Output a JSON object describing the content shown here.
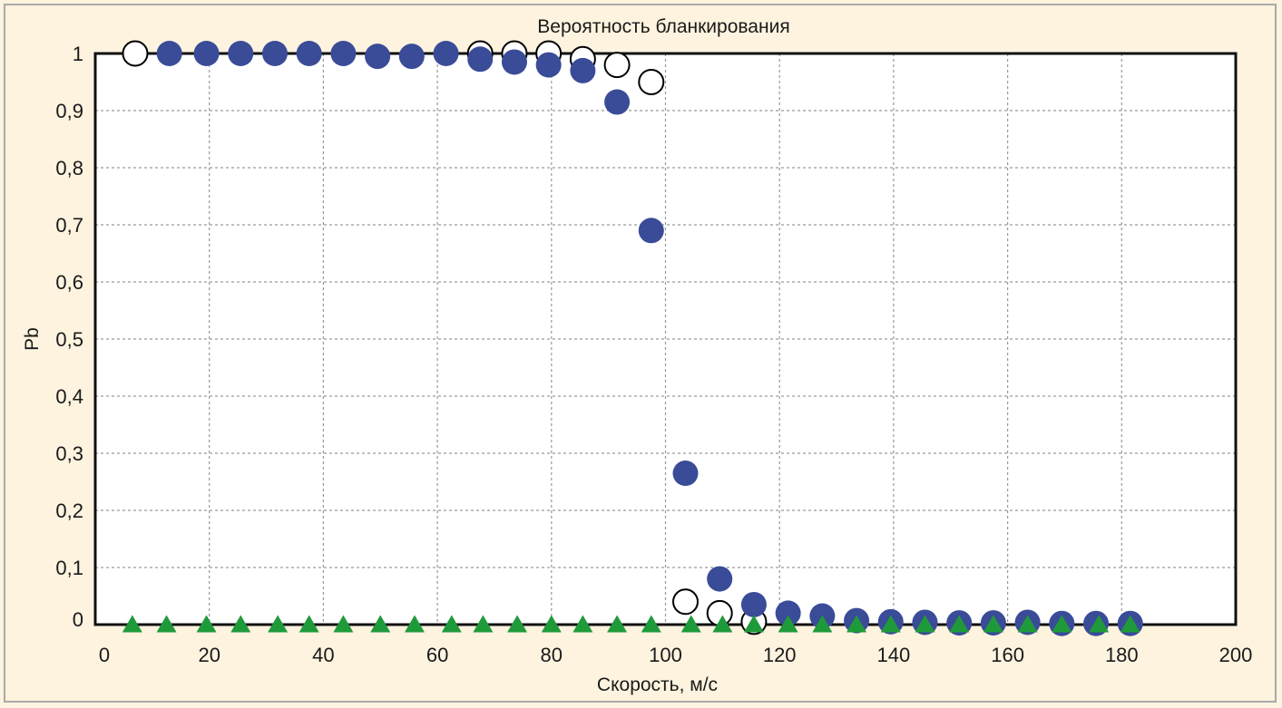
{
  "chart_data": {
    "type": "scatter",
    "title": "Вероятность бланкирования",
    "xlabel": "Скорость, м/с",
    "ylabel": "Pb",
    "xlim": [
      0,
      200
    ],
    "ylim": [
      0,
      1
    ],
    "grid": true,
    "x_ticks": [
      0,
      20,
      40,
      60,
      80,
      100,
      120,
      140,
      160,
      180,
      200
    ],
    "y_ticks": [
      0,
      0.1,
      0.2,
      0.3,
      0.4,
      0.5,
      0.6,
      0.7,
      0.8,
      0.9,
      1
    ],
    "x_tick_labels": [
      "0",
      "20",
      "40",
      "60",
      "80",
      "100",
      "120",
      "140",
      "160",
      "180",
      "200"
    ],
    "y_tick_labels": [
      "0",
      "0,1",
      "0,2",
      "0,3",
      "0,4",
      "0,5",
      "0,6",
      "0,7",
      "0,8",
      "0,9",
      "1"
    ],
    "series": [
      {
        "marker": "open-circle",
        "color": "#000000",
        "x": [
          7,
          67.5,
          73.5,
          79.5,
          85.5,
          91.5,
          97.5,
          103.5,
          109.5,
          115.5
        ],
        "y": [
          1.0,
          1.0,
          1.0,
          1.0,
          0.99,
          0.98,
          0.95,
          0.04,
          0.02,
          0.005
        ]
      },
      {
        "marker": "filled-circle",
        "color": "#3a4b98",
        "x": [
          13,
          19.5,
          25.5,
          31.5,
          37.5,
          43.5,
          49.5,
          55.5,
          61.5,
          67.5,
          73.5,
          79.5,
          85.5,
          91.5,
          97.5,
          103.5,
          109.5,
          115.5,
          121.5,
          127.5,
          133.5,
          139.5,
          145.5,
          151.5,
          157.5,
          163.5,
          169.5,
          175.5,
          181.5
        ],
        "y": [
          1.0,
          1.0,
          1.0,
          1.0,
          1.0,
          1.0,
          0.995,
          0.995,
          1.0,
          0.99,
          0.985,
          0.98,
          0.97,
          0.915,
          0.69,
          0.265,
          0.08,
          0.035,
          0.02,
          0.015,
          0.007,
          0.005,
          0.004,
          0.003,
          0.003,
          0.004,
          0.002,
          0.002,
          0.002
        ]
      },
      {
        "marker": "filled-triangle",
        "color": "#1f9a3a",
        "x": [
          6.5,
          12.5,
          19.5,
          25.5,
          32,
          37.5,
          43.5,
          50,
          56,
          62.5,
          68,
          74,
          80,
          85.5,
          91.5,
          97.5,
          104.5,
          110,
          115.5,
          121.5,
          127.5,
          133.5,
          139.5,
          145.5,
          151.5,
          157.5,
          163.5,
          169.5,
          176,
          181.5
        ],
        "y": [
          0,
          0,
          0,
          0,
          0,
          0,
          0,
          0,
          0,
          0,
          0,
          0,
          0,
          0,
          0,
          0,
          0,
          0,
          0,
          0,
          0,
          0,
          0,
          0,
          0,
          0,
          0,
          0,
          0,
          0
        ]
      }
    ]
  }
}
